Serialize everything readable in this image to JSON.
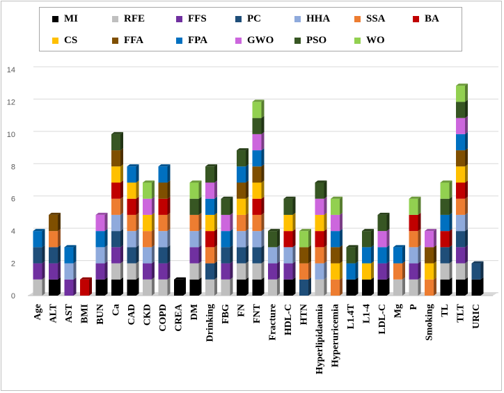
{
  "chart_data": {
    "type": "bar",
    "stacked": true,
    "title": "",
    "xlabel": "",
    "ylabel": "",
    "ylim": [
      0,
      14
    ],
    "yticks": [
      0,
      2,
      4,
      6,
      8,
      10,
      12,
      14
    ],
    "legend_position": "top",
    "categories": [
      "Age",
      "ALT",
      "AST",
      "BMI",
      "BUN",
      "Ca",
      "CAD",
      "CKD",
      "COPD",
      "CREA",
      "DM",
      "Drinking",
      "FBG",
      "FN",
      "FNT",
      "Fracture",
      "HDL-C",
      "HTN",
      "Hyperlipidaemia",
      "Hyperuricemia",
      "L1.4T",
      "L1-4",
      "LDL-C",
      "Mg",
      "P",
      "Smoking",
      "TL",
      "TLT",
      "URIC"
    ],
    "series": [
      {
        "name": "MI",
        "color": "#000000",
        "values": [
          0,
          1,
          0,
          0,
          1,
          1,
          1,
          0,
          0,
          1,
          1,
          0,
          0,
          1,
          1,
          0,
          1,
          0,
          0,
          0,
          1,
          1,
          1,
          0,
          0,
          0,
          1,
          1,
          1
        ]
      },
      {
        "name": "RFE",
        "color": "#bfbfbf",
        "values": [
          1,
          0,
          0,
          0,
          0,
          1,
          1,
          1,
          1,
          0,
          1,
          1,
          1,
          1,
          1,
          1,
          0,
          0,
          1,
          0,
          0,
          0,
          0,
          1,
          1,
          0,
          1,
          1,
          0
        ]
      },
      {
        "name": "FFS",
        "color": "#7030a0",
        "values": [
          1,
          1,
          1,
          0,
          1,
          1,
          0,
          1,
          1,
          0,
          1,
          0,
          1,
          0,
          0,
          1,
          1,
          0,
          0,
          0,
          0,
          0,
          1,
          0,
          1,
          0,
          0,
          1,
          0
        ]
      },
      {
        "name": "PC",
        "color": "#1f4e79",
        "values": [
          1,
          1,
          0,
          0,
          0,
          1,
          1,
          0,
          1,
          0,
          0,
          1,
          1,
          1,
          1,
          0,
          0,
          1,
          0,
          0,
          0,
          0,
          0,
          0,
          0,
          0,
          1,
          1,
          1
        ]
      },
      {
        "name": "HHA",
        "color": "#8faadc",
        "values": [
          0,
          0,
          1,
          0,
          1,
          1,
          1,
          1,
          1,
          0,
          1,
          0,
          0,
          1,
          1,
          1,
          1,
          0,
          1,
          0,
          0,
          0,
          0,
          0,
          1,
          0,
          0,
          1,
          0
        ]
      },
      {
        "name": "SSA",
        "color": "#ed7d31",
        "values": [
          0,
          1,
          0,
          0,
          0,
          1,
          1,
          1,
          1,
          0,
          1,
          1,
          0,
          1,
          1,
          0,
          0,
          1,
          1,
          1,
          0,
          0,
          0,
          1,
          1,
          1,
          0,
          1,
          0
        ]
      },
      {
        "name": "BA",
        "color": "#c00000",
        "values": [
          0,
          0,
          0,
          1,
          0,
          1,
          1,
          0,
          1,
          0,
          0,
          1,
          0,
          0,
          1,
          0,
          1,
          0,
          1,
          0,
          0,
          0,
          0,
          0,
          1,
          0,
          1,
          1,
          0
        ]
      },
      {
        "name": "CS",
        "color": "#ffc000",
        "values": [
          0,
          0,
          0,
          0,
          0,
          1,
          1,
          1,
          0,
          0,
          0,
          1,
          0,
          1,
          1,
          0,
          1,
          0,
          1,
          1,
          0,
          1,
          0,
          0,
          0,
          1,
          0,
          1,
          0
        ]
      },
      {
        "name": "FFA",
        "color": "#7f4f00",
        "values": [
          0,
          1,
          0,
          0,
          0,
          1,
          0,
          0,
          1,
          0,
          0,
          0,
          0,
          1,
          1,
          0,
          0,
          1,
          0,
          1,
          0,
          0,
          0,
          0,
          0,
          1,
          0,
          1,
          0
        ]
      },
      {
        "name": "FPA",
        "color": "#0070c0",
        "values": [
          1,
          0,
          1,
          0,
          1,
          0,
          1,
          0,
          1,
          0,
          0,
          1,
          1,
          1,
          1,
          0,
          0,
          0,
          0,
          1,
          1,
          1,
          1,
          1,
          0,
          0,
          1,
          1,
          0
        ]
      },
      {
        "name": "GWO",
        "color": "#cc66dd",
        "values": [
          0,
          0,
          0,
          0,
          1,
          0,
          0,
          1,
          0,
          0,
          0,
          1,
          1,
          0,
          1,
          0,
          0,
          0,
          1,
          1,
          0,
          0,
          1,
          0,
          0,
          1,
          0,
          1,
          0
        ]
      },
      {
        "name": "PSO",
        "color": "#375623",
        "values": [
          0,
          0,
          0,
          0,
          0,
          1,
          0,
          0,
          0,
          0,
          1,
          1,
          1,
          1,
          1,
          1,
          1,
          0,
          1,
          0,
          1,
          1,
          1,
          0,
          0,
          0,
          1,
          1,
          0
        ]
      },
      {
        "name": "WO",
        "color": "#92d050",
        "values": [
          0,
          0,
          0,
          0,
          0,
          0,
          0,
          1,
          0,
          0,
          1,
          0,
          0,
          0,
          1,
          0,
          0,
          1,
          0,
          1,
          0,
          0,
          0,
          0,
          1,
          0,
          1,
          1,
          0
        ]
      }
    ]
  }
}
